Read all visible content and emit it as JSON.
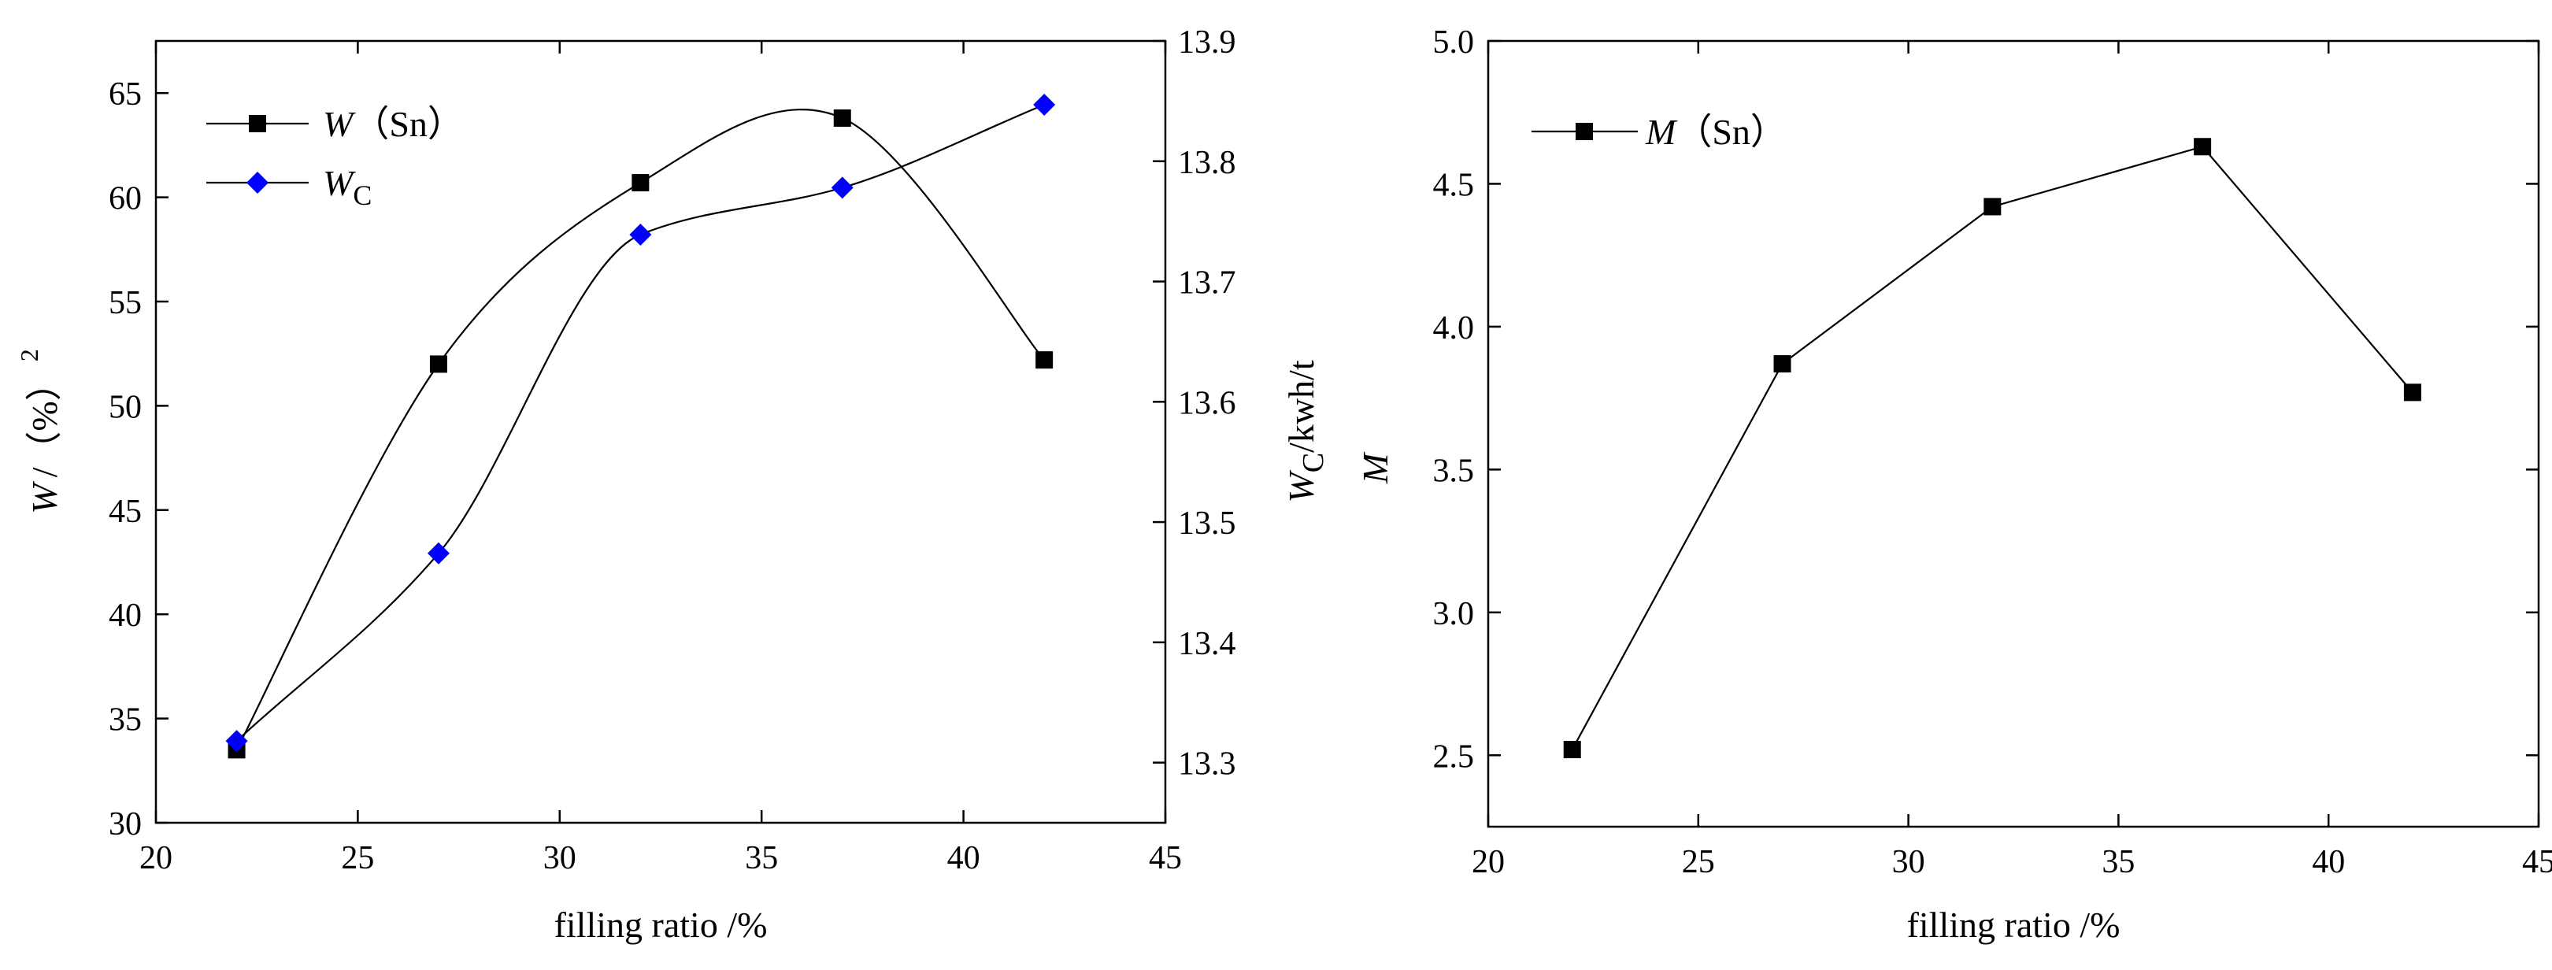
{
  "chart_data": [
    {
      "type": "line",
      "title": "",
      "xlabel": "filling ratio /%",
      "ylabel": {
        "main": "W",
        "rest": "/（%）",
        "sup": "2"
      },
      "y2label": {
        "main": "W",
        "sub": "C",
        "rest": "/kwh/t"
      },
      "xlim": [
        20,
        45
      ],
      "ylim": [
        30,
        67.5
      ],
      "y2lim": [
        13.25,
        13.9
      ],
      "xticks": [
        20,
        25,
        30,
        35,
        40,
        45
      ],
      "yticks": [
        30,
        35,
        40,
        45,
        50,
        55,
        60,
        65
      ],
      "y2ticks": [
        "13.3",
        "13.4",
        "13.5",
        "13.6",
        "13.7",
        "13.8",
        "13.9"
      ],
      "grid": false,
      "legend_position": "top-left",
      "series": [
        {
          "name": "W（Sn）",
          "legend_main": "W",
          "legend_rest": "（Sn）",
          "axis": "left",
          "marker": "square",
          "color": "#000000",
          "x": [
            22,
            27,
            32,
            37,
            42
          ],
          "values": [
            33.5,
            52.0,
            60.7,
            63.8,
            52.2
          ]
        },
        {
          "name": "WC",
          "legend_main": "W",
          "legend_sub": "C",
          "axis": "right",
          "marker": "diamond",
          "color": "#0000ff",
          "x": [
            22,
            27,
            32,
            37,
            42
          ],
          "values": [
            13.318,
            13.474,
            13.739,
            13.778,
            13.847
          ]
        }
      ]
    },
    {
      "type": "line",
      "title": "",
      "xlabel": "filling ratio /%",
      "ylabel": {
        "main": "M"
      },
      "xlim": [
        20,
        45
      ],
      "ylim": [
        2.25,
        5.0
      ],
      "xticks": [
        20,
        25,
        30,
        35,
        40,
        45
      ],
      "yticks": [
        "2.5",
        "3.0",
        "3.5",
        "4.0",
        "4.5",
        "5.0"
      ],
      "grid": false,
      "legend_position": "top-left",
      "series": [
        {
          "name": "M（Sn）",
          "legend_main": "M",
          "legend_rest": "（Sn）",
          "axis": "left",
          "marker": "square",
          "color": "#000000",
          "x": [
            22,
            27,
            32,
            37,
            42
          ],
          "values": [
            2.52,
            3.87,
            4.42,
            4.63,
            3.77
          ]
        }
      ]
    }
  ]
}
